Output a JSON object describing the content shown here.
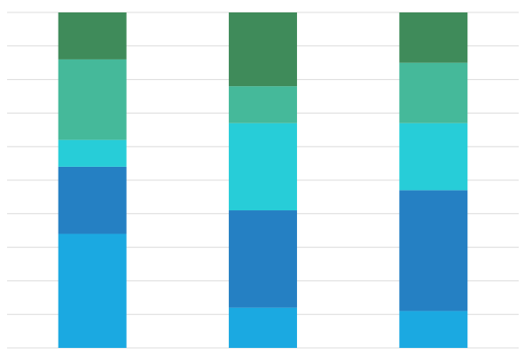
{
  "chart_data": {
    "type": "stacked-bar",
    "categories": [
      null,
      null,
      null
    ],
    "series": [
      {
        "color": "#1ba9e1",
        "values": [
          34,
          12,
          11
        ]
      },
      {
        "color": "#2580c3",
        "values": [
          20,
          29,
          36
        ]
      },
      {
        "color": "#27cdd8",
        "values": [
          8,
          26,
          20
        ]
      },
      {
        "color": "#45b99a",
        "values": [
          24,
          11,
          18
        ]
      },
      {
        "color": "#3f8b5a",
        "values": [
          14,
          22,
          15
        ]
      }
    ],
    "ylim": [
      0,
      100
    ],
    "yticks": [
      0,
      10,
      20,
      30,
      40,
      50,
      60,
      70,
      80,
      90,
      100
    ],
    "grid": true
  }
}
